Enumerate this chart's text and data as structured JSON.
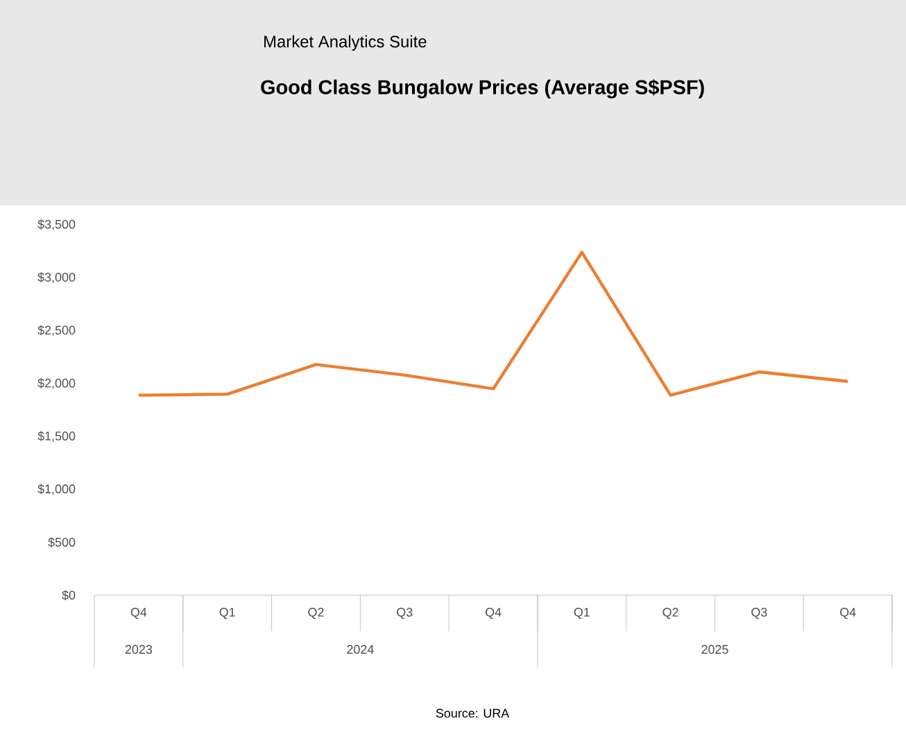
{
  "chart_data": {
    "type": "line",
    "subtitle": "Market Analytics Suite",
    "title": "Good Class Bungalow Prices (Average S$PSF)",
    "categories": [
      "Q4",
      "Q1",
      "Q2",
      "Q3",
      "Q4",
      "Q1",
      "Q2",
      "Q3",
      "Q4"
    ],
    "series": [
      {
        "color": "#ed7d31",
        "values": [
          1890,
          1900,
          2180,
          2080,
          1950,
          3240,
          1890,
          2110,
          2020
        ]
      }
    ],
    "ylim": [
      0,
      3500
    ],
    "yticks": [
      {
        "value": 0,
        "label": "$0"
      },
      {
        "value": 500,
        "label": "$500"
      },
      {
        "value": 1000,
        "label": "$1,000"
      },
      {
        "value": 1500,
        "label": "$1,500"
      },
      {
        "value": 2000,
        "label": "$2,000"
      },
      {
        "value": 2500,
        "label": "$2,500"
      },
      {
        "value": 3000,
        "label": "$3,000"
      },
      {
        "value": 3500,
        "label": "$3,500"
      }
    ],
    "marker": "none",
    "line_style": "solid",
    "annotations": [
      "2023",
      "2024",
      "2025",
      "Source: URA"
    ]
  }
}
